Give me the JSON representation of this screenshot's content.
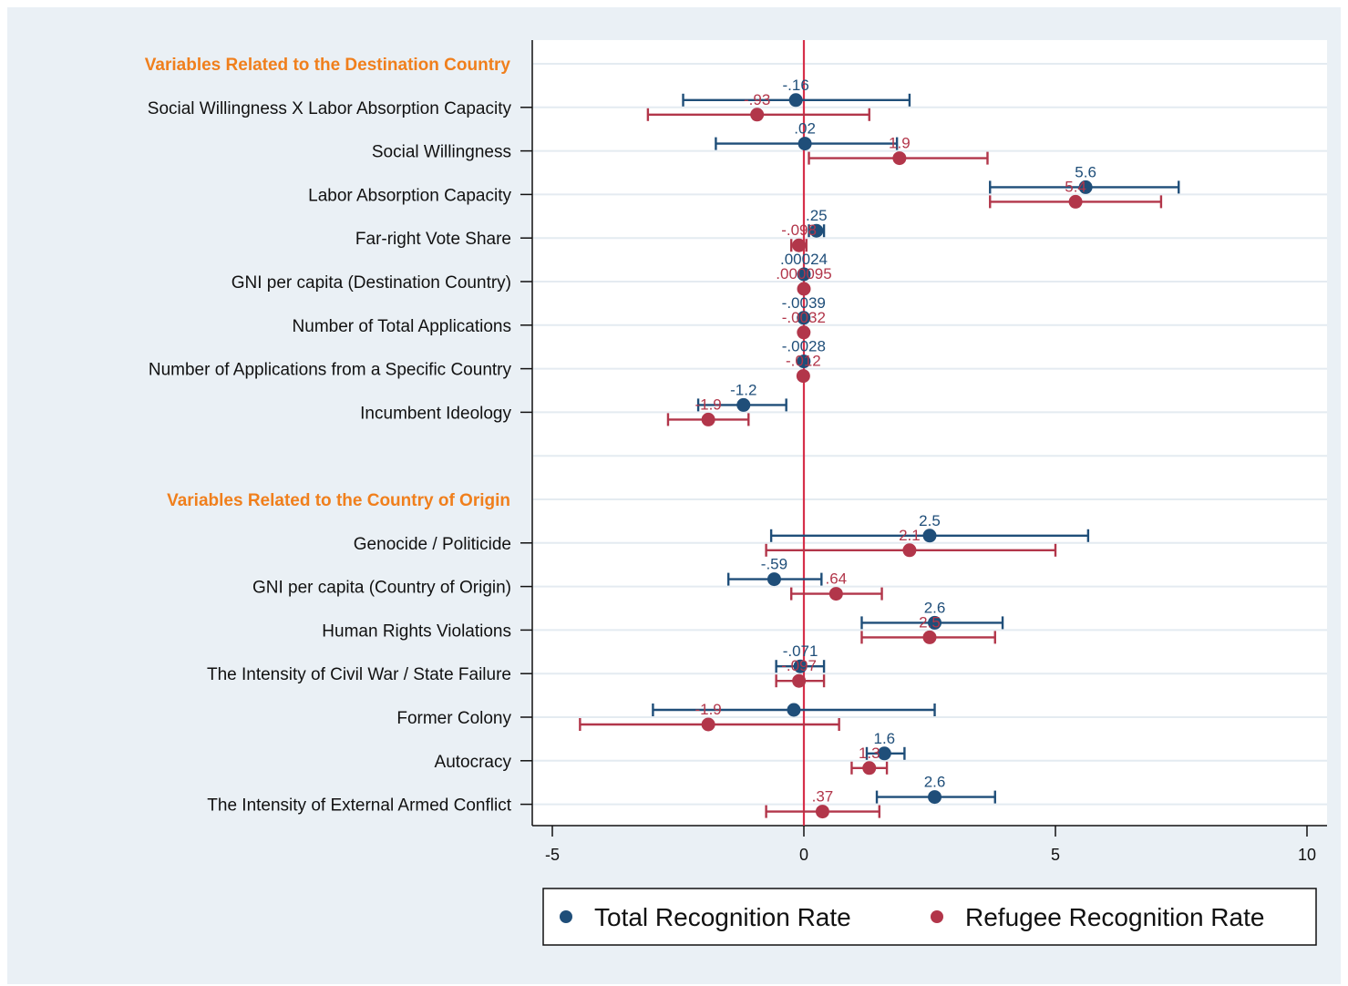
{
  "chart_data": {
    "type": "scatter",
    "subtype": "coefficient-plot",
    "xlim": [
      -5,
      10
    ],
    "xticks": [
      {
        "value": -5,
        "label": "-5"
      },
      {
        "value": 0,
        "label": "0"
      },
      {
        "value": 5,
        "label": "5"
      },
      {
        "value": 10,
        "label": "10"
      }
    ],
    "reference_line": 0,
    "grid": true,
    "legend_position": "bottom",
    "series": [
      {
        "name": "Total Recognition Rate",
        "color": "#1f4e79"
      },
      {
        "name": "Refugee Recognition Rate",
        "color": "#b2364a"
      }
    ],
    "groups": [
      {
        "label": "Variables Related to the Destination Country",
        "slot": 0
      },
      {
        "label": "Variables Related to the Country of Origin",
        "slot": 10
      }
    ],
    "rows": [
      {
        "label": "Social Willingness X Labor Absorption Capacity",
        "slot": 1,
        "total": {
          "est": -0.16,
          "lo": -2.4,
          "hi": 2.1,
          "label": "-.16"
        },
        "refugee": {
          "est": -0.93,
          "lo": -3.1,
          "hi": 1.3,
          "label": "-.93"
        }
      },
      {
        "label": "Social Willingness",
        "slot": 2,
        "total": {
          "est": 0.02,
          "lo": -1.75,
          "hi": 1.85,
          "label": ".02"
        },
        "refugee": {
          "est": 1.9,
          "lo": 0.1,
          "hi": 3.65,
          "label": "1.9"
        }
      },
      {
        "label": "Labor Absorption Capacity",
        "slot": 3,
        "total": {
          "est": 5.6,
          "lo": 3.7,
          "hi": 7.45,
          "label": "5.6"
        },
        "refugee": {
          "est": 5.4,
          "lo": 3.7,
          "hi": 7.1,
          "label": "5.4"
        }
      },
      {
        "label": "Far-right Vote Share",
        "slot": 4,
        "total": {
          "est": 0.25,
          "lo": 0.1,
          "hi": 0.4,
          "label": ".25"
        },
        "refugee": {
          "est": -0.098,
          "lo": -0.25,
          "hi": 0.05,
          "label": "-.098"
        }
      },
      {
        "label": "GNI per capita (Destination Country)",
        "slot": 5,
        "total": {
          "est": 0.00024,
          "lo": -0.02,
          "hi": 0.02,
          "label": ".00024"
        },
        "refugee": {
          "est": 9.5e-05,
          "lo": -0.02,
          "hi": 0.02,
          "label": ".000095"
        }
      },
      {
        "label": "Number of Total Applications",
        "slot": 6,
        "total": {
          "est": -0.0039,
          "lo": -0.02,
          "hi": 0.02,
          "label": "-.0039"
        },
        "refugee": {
          "est": -0.0032,
          "lo": -0.02,
          "hi": 0.02,
          "label": "-.0032"
        }
      },
      {
        "label": "Number of Applications from a Specific Country",
        "slot": 7,
        "total": {
          "est": -0.0028,
          "lo": -0.02,
          "hi": 0.02,
          "label": "-.0028"
        },
        "refugee": {
          "est": -0.012,
          "lo": -0.03,
          "hi": 0.01,
          "label": "-.012"
        }
      },
      {
        "label": "Incumbent Ideology",
        "slot": 8,
        "total": {
          "est": -1.2,
          "lo": -2.1,
          "hi": -0.35,
          "label": "-1.2"
        },
        "refugee": {
          "est": -1.9,
          "lo": -2.7,
          "hi": -1.1,
          "label": "-1.9"
        }
      },
      {
        "label": "Genocide / Politicide",
        "slot": 11,
        "total": {
          "est": 2.5,
          "lo": -0.65,
          "hi": 5.65,
          "label": "2.5"
        },
        "refugee": {
          "est": 2.1,
          "lo": -0.75,
          "hi": 5.0,
          "label": "2.1"
        }
      },
      {
        "label": "GNI per capita (Country of Origin)",
        "slot": 12,
        "total": {
          "est": -0.59,
          "lo": -1.5,
          "hi": 0.35,
          "label": "-.59"
        },
        "refugee": {
          "est": 0.64,
          "lo": -0.25,
          "hi": 1.55,
          "label": ".64"
        }
      },
      {
        "label": "Human Rights Violations",
        "slot": 13,
        "total": {
          "est": 2.6,
          "lo": 1.15,
          "hi": 3.95,
          "label": "2.6"
        },
        "refugee": {
          "est": 2.5,
          "lo": 1.15,
          "hi": 3.8,
          "label": "2.5"
        }
      },
      {
        "label": "The Intensity of Civil War / State Failure",
        "slot": 14,
        "total": {
          "est": -0.071,
          "lo": -0.55,
          "hi": 0.4,
          "label": "-.071"
        },
        "refugee": {
          "est": -0.097,
          "lo": -0.55,
          "hi": 0.4,
          "label": "-.097"
        }
      },
      {
        "label": "Former Colony",
        "slot": 15,
        "total": {
          "est": -0.2,
          "lo": -3.0,
          "hi": 2.6,
          "label": ""
        },
        "refugee": {
          "est": -1.9,
          "lo": -4.45,
          "hi": 0.7,
          "label": "-1.9"
        }
      },
      {
        "label": "Autocracy",
        "slot": 16,
        "total": {
          "est": 1.6,
          "lo": 1.25,
          "hi": 2.0,
          "label": "1.6"
        },
        "refugee": {
          "est": 1.3,
          "lo": 0.95,
          "hi": 1.65,
          "label": "1.3"
        }
      },
      {
        "label": "The Intensity of External Armed Conflict",
        "slot": 17,
        "total": {
          "est": 2.6,
          "lo": 1.45,
          "hi": 3.8,
          "label": "2.6"
        },
        "refugee": {
          "est": 0.37,
          "lo": -0.75,
          "hi": 1.5,
          "label": ".37"
        }
      }
    ]
  }
}
